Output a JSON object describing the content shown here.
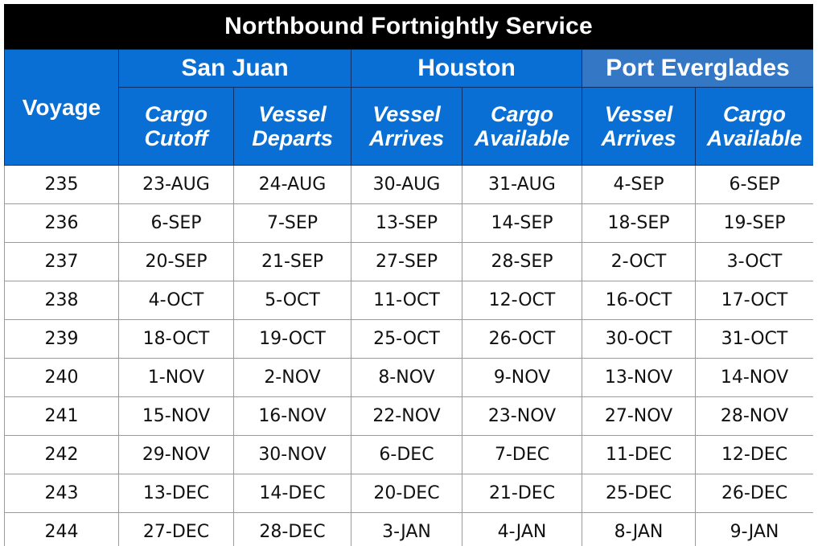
{
  "title": "Northbound Fortnightly Service",
  "header": {
    "voyage": "Voyage",
    "ports": [
      {
        "name": "San Juan",
        "cols": [
          "Cargo|Cutoff",
          "Vessel|Departs"
        ]
      },
      {
        "name": "Houston",
        "cols": [
          "Vessel|Arrives",
          "Cargo|Available"
        ]
      },
      {
        "name": "Port Everglades",
        "cols": [
          "Vessel|Arrives",
          "Cargo|Available"
        ]
      }
    ]
  },
  "rows": [
    [
      "235",
      "23-AUG",
      "24-AUG",
      "30-AUG",
      "31-AUG",
      "4-SEP",
      "6-SEP"
    ],
    [
      "236",
      "6-SEP",
      "7-SEP",
      "13-SEP",
      "14-SEP",
      "18-SEP",
      "19-SEP"
    ],
    [
      "237",
      "20-SEP",
      "21-SEP",
      "27-SEP",
      "28-SEP",
      "2-OCT",
      "3-OCT"
    ],
    [
      "238",
      "4-OCT",
      "5-OCT",
      "11-OCT",
      "12-OCT",
      "16-OCT",
      "17-OCT"
    ],
    [
      "239",
      "18-OCT",
      "19-OCT",
      "25-OCT",
      "26-OCT",
      "30-OCT",
      "31-OCT"
    ],
    [
      "240",
      "1-NOV",
      "2-NOV",
      "8-NOV",
      "9-NOV",
      "13-NOV",
      "14-NOV"
    ],
    [
      "241",
      "15-NOV",
      "16-NOV",
      "22-NOV",
      "23-NOV",
      "27-NOV",
      "28-NOV"
    ],
    [
      "242",
      "29-NOV",
      "30-NOV",
      "6-DEC",
      "7-DEC",
      "11-DEC",
      "12-DEC"
    ],
    [
      "243",
      "13-DEC",
      "14-DEC",
      "20-DEC",
      "21-DEC",
      "25-DEC",
      "26-DEC"
    ],
    [
      "244",
      "27-DEC",
      "28-DEC",
      "3-JAN",
      "4-JAN",
      "8-JAN",
      "9-JAN"
    ]
  ],
  "colors": {
    "title_bg": "#000000",
    "header_blue": "#0a6fd4",
    "header_alt_blue": "#3477c4",
    "border_dark": "#0b2f6a",
    "grid": "#9a9a9a"
  }
}
